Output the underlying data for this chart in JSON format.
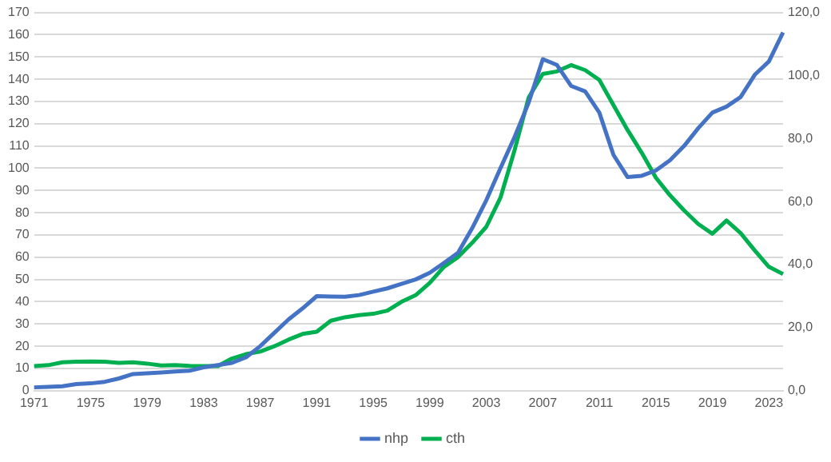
{
  "chart_data": {
    "type": "line",
    "categories": [
      "1971",
      null,
      null,
      null,
      "1975",
      null,
      null,
      null,
      "1979",
      null,
      null,
      null,
      "1983",
      null,
      null,
      null,
      "1987",
      null,
      null,
      null,
      "1991",
      null,
      null,
      null,
      "1995",
      null,
      null,
      null,
      "1999",
      null,
      null,
      null,
      "2003",
      null,
      null,
      null,
      "2007",
      null,
      null,
      null,
      "2011",
      null,
      null,
      null,
      "2015",
      null,
      null,
      null,
      "2019",
      null,
      null,
      null,
      "2023",
      null
    ],
    "series": [
      {
        "name": "nhp",
        "color": "#4472c4",
        "values": [
          1.5,
          1.7,
          2,
          3,
          3.3,
          4,
          5.5,
          7.5,
          7.8,
          8.2,
          8.6,
          9,
          10.5,
          11.5,
          12.5,
          15,
          20,
          26,
          32,
          37,
          42.5,
          42.3,
          42.2,
          43,
          44.5,
          46,
          48,
          50,
          53,
          57.4,
          62,
          73,
          85.6,
          100,
          114,
          129.5,
          149,
          146.4,
          137,
          134.5,
          125,
          106,
          96,
          96.6,
          99,
          103.6,
          110,
          118,
          125,
          127.7,
          132,
          142,
          148,
          161
        ]
      },
      {
        "name": "cth",
        "color": "#00b050",
        "axis": "y2",
        "values": [
          7.8,
          8.1,
          9,
          9.2,
          9.3,
          9.2,
          8.8,
          9,
          8.6,
          8,
          8.1,
          7.9,
          7.8,
          7.8,
          10.2,
          11.6,
          12.4,
          14.1,
          16.2,
          18,
          18.7,
          22.2,
          23.3,
          24,
          24.4,
          25.4,
          28.2,
          30.3,
          34.2,
          39.3,
          42.4,
          46.9,
          52,
          61.2,
          76.3,
          93,
          100.5,
          101.3,
          103.3,
          101.7,
          98.6,
          90.6,
          82.7,
          75.5,
          67.6,
          62,
          57.2,
          52.9,
          49.8,
          54,
          50,
          44.5,
          39.3,
          37
        ]
      }
    ],
    "ylim": [
      0,
      170
    ],
    "yticks": [
      0,
      10,
      20,
      30,
      40,
      50,
      60,
      70,
      80,
      90,
      100,
      110,
      120,
      130,
      140,
      150,
      160,
      170
    ],
    "y2lim": [
      0,
      120
    ],
    "y2ticks": [
      {
        "value": 0,
        "label": "0,0"
      },
      {
        "value": 20,
        "label": "20,0"
      },
      {
        "value": 40,
        "label": "40,0"
      },
      {
        "value": 60,
        "label": "60,0"
      },
      {
        "value": 80,
        "label": "80,0"
      },
      {
        "value": 100,
        "label": "100,0"
      },
      {
        "value": 120,
        "label": "120,0"
      }
    ],
    "grid": "y",
    "legend": "bottom",
    "marker": "none",
    "line_style": "solid"
  }
}
